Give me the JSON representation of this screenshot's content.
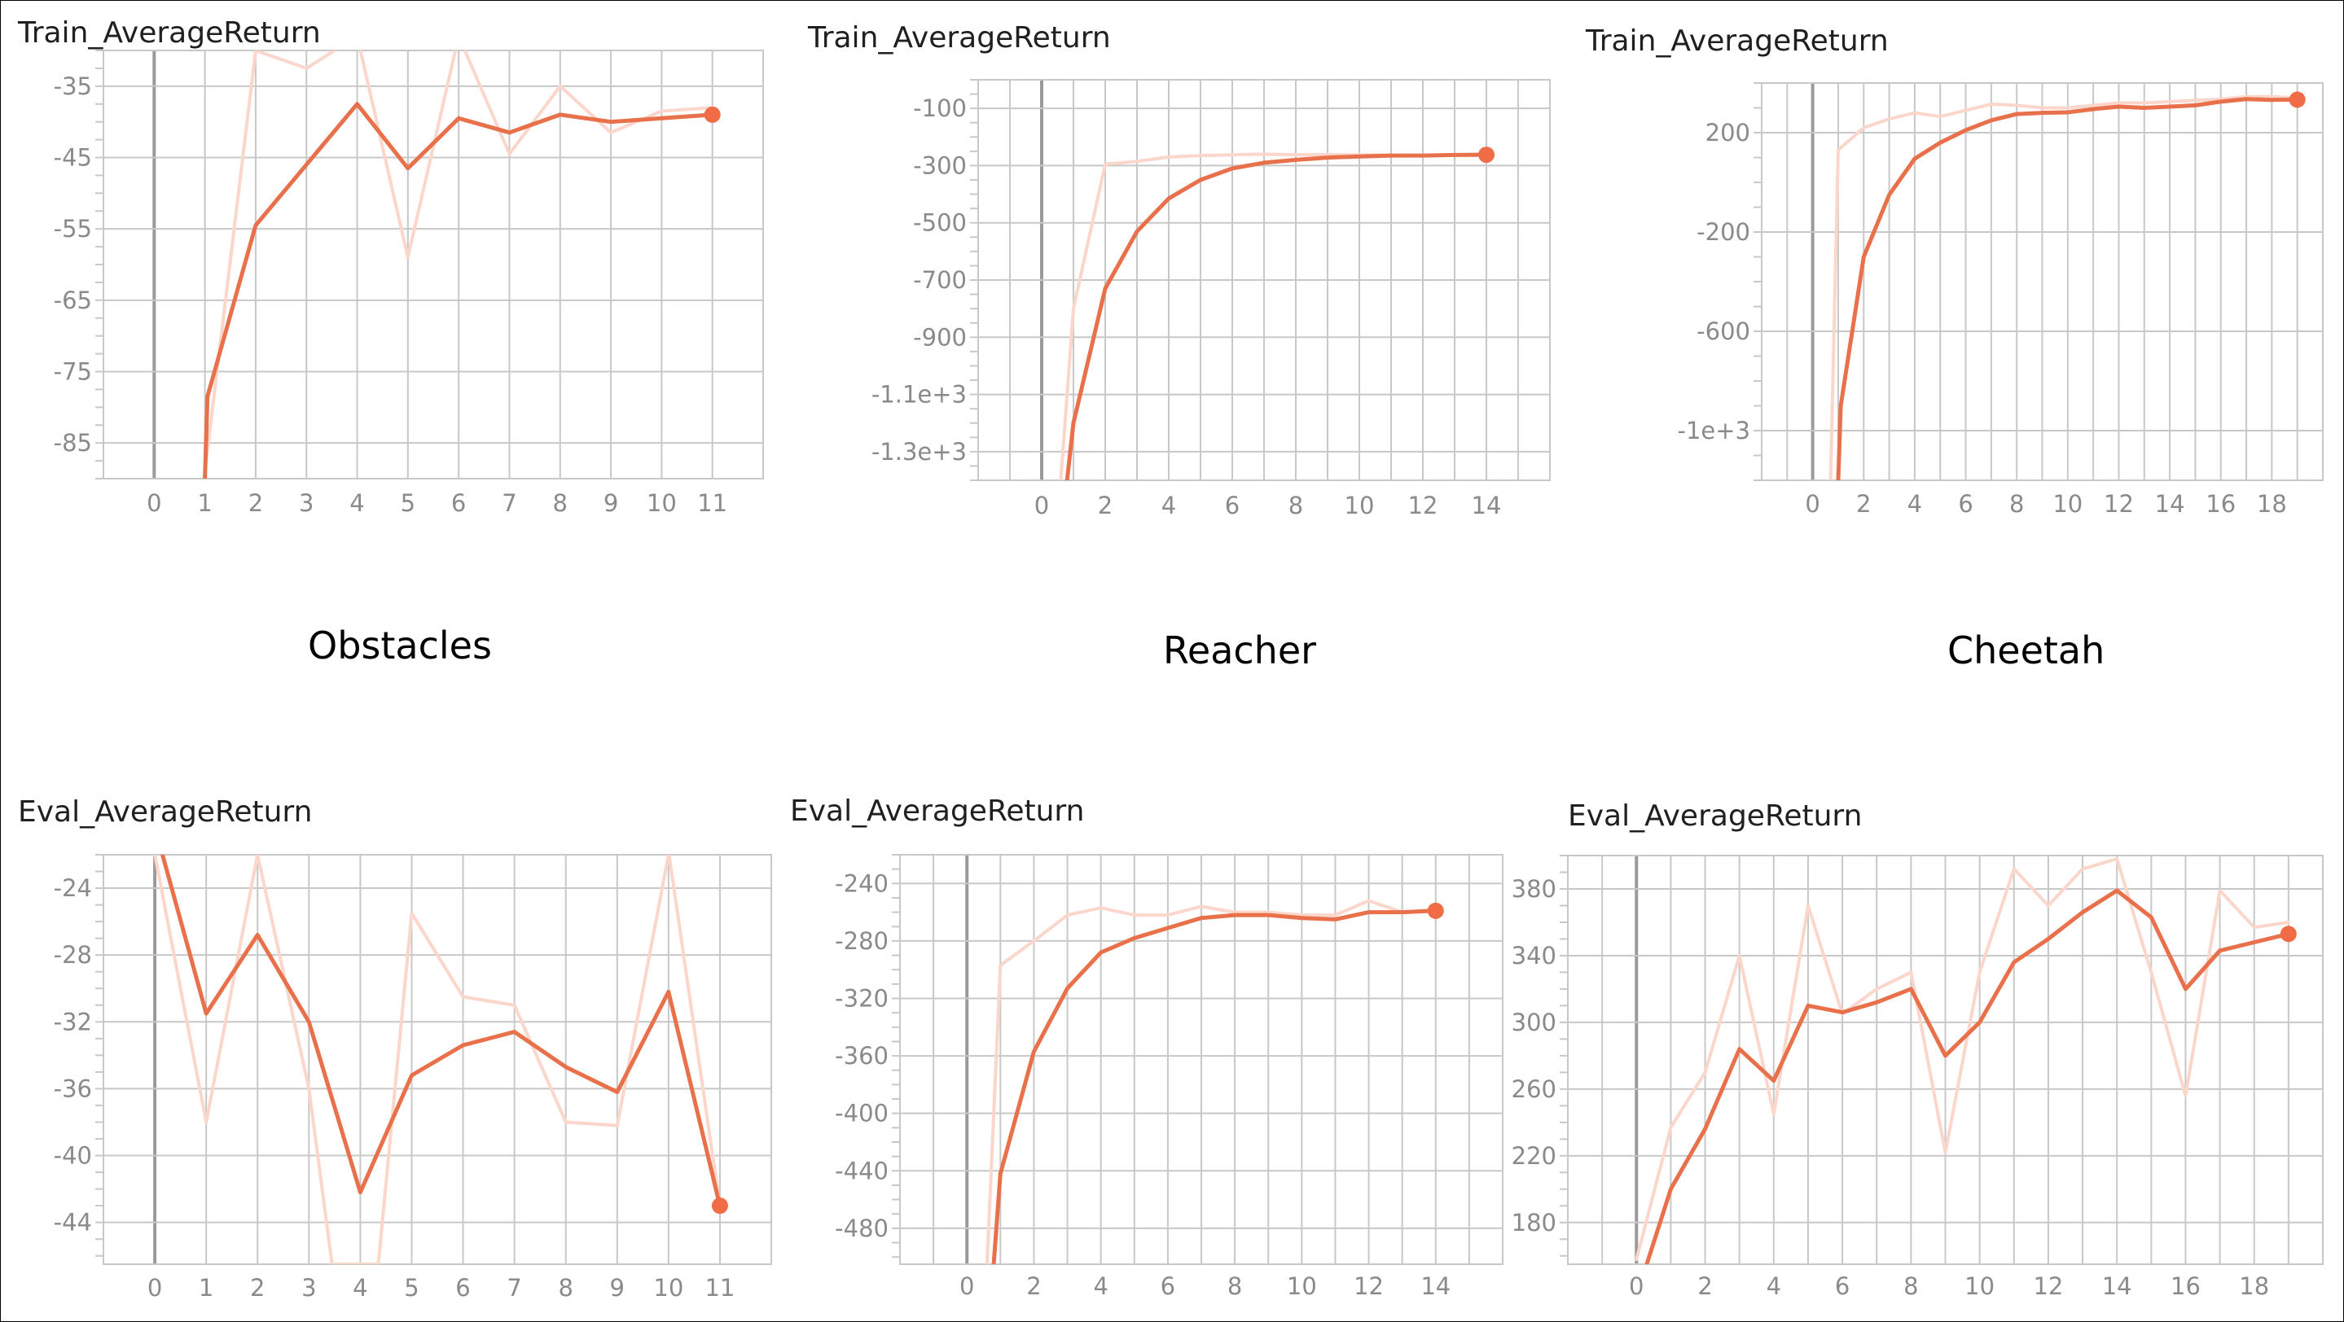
{
  "colors": {
    "line": "#e8704a",
    "raw_line": "#fbd6cb",
    "marker": "#ef6c47",
    "grid": "#c8c8c8",
    "zero_line": "#9a9a9a",
    "tick_text": "#8a8a8a"
  },
  "env_labels": [
    "Obstacles",
    "Reacher",
    "Cheetah"
  ],
  "chart_data": [
    {
      "type": "line",
      "title": "Train_AverageReturn",
      "env": "Obstacles",
      "xlim": [
        -1,
        12
      ],
      "ylim": [
        -90,
        -30
      ],
      "xticks": [
        0,
        1,
        2,
        3,
        4,
        5,
        6,
        7,
        8,
        9,
        10,
        11
      ],
      "yticks": [
        -85,
        -75,
        -65,
        -55,
        -45,
        -35
      ],
      "grid": true,
      "series": [
        {
          "role": "raw",
          "x": [
            1,
            2,
            3,
            4,
            5,
            6,
            7,
            8,
            9,
            10,
            11
          ],
          "y": [
            -89,
            -30,
            -32.5,
            -28,
            -59,
            -28,
            -44.5,
            -35,
            -41.5,
            -38.5,
            -38
          ]
        },
        {
          "role": "smoothed",
          "x": [
            1,
            1.05,
            2,
            3,
            4,
            5,
            6,
            7,
            8,
            9,
            10,
            11
          ],
          "y": [
            -90,
            -78.5,
            -54.5,
            -46,
            -37.5,
            -46.5,
            -39.5,
            -41.5,
            -39,
            -40,
            -39.5,
            -39
          ]
        }
      ]
    },
    {
      "type": "line",
      "title": "Train_AverageReturn",
      "env": "Reacher",
      "xlim": [
        -2,
        16
      ],
      "ylim": [
        -1400,
        0
      ],
      "xticks": [
        0,
        2,
        4,
        6,
        8,
        10,
        12,
        14
      ],
      "yticks": [
        -1300,
        -1100,
        -900,
        -700,
        -500,
        -300,
        -100
      ],
      "ytick_labels": [
        "-1.3e+3",
        "-1.1e+3",
        "-900",
        "-700",
        "-500",
        "-300",
        "-100"
      ],
      "grid": true,
      "series": [
        {
          "role": "raw",
          "x": [
            0.6,
            1,
            2,
            3,
            4,
            5,
            6,
            7,
            8,
            10,
            12,
            14
          ],
          "y": [
            -1400,
            -800,
            -295,
            -285,
            -270,
            -265,
            -262,
            -260,
            -262,
            -262,
            -265,
            -260
          ]
        },
        {
          "role": "smoothed",
          "x": [
            0.8,
            1,
            2,
            3,
            4,
            5,
            6,
            7,
            8,
            9,
            10,
            11,
            12,
            13,
            14
          ],
          "y": [
            -1400,
            -1200,
            -730,
            -530,
            -415,
            -350,
            -310,
            -290,
            -280,
            -272,
            -268,
            -265,
            -265,
            -263,
            -262
          ]
        }
      ]
    },
    {
      "type": "line",
      "title": "Train_AverageReturn",
      "env": "Cheetah",
      "xlim": [
        -2,
        20
      ],
      "ylim": [
        -1200,
        400
      ],
      "xticks": [
        0,
        2,
        4,
        6,
        8,
        10,
        12,
        14,
        16,
        18
      ],
      "yticks": [
        -1000,
        -600,
        -200,
        200
      ],
      "ytick_labels": [
        "-1e+3",
        "-600",
        "-200",
        "200"
      ],
      "grid": true,
      "series": [
        {
          "role": "raw",
          "x": [
            0.7,
            1,
            2,
            3,
            4,
            5,
            6,
            7,
            8,
            9,
            10,
            11,
            12,
            13,
            14,
            15,
            16,
            17,
            18,
            19
          ],
          "y": [
            -1200,
            130,
            220,
            255,
            280,
            265,
            290,
            315,
            310,
            300,
            300,
            310,
            320,
            320,
            325,
            330,
            335,
            345,
            345,
            340
          ]
        },
        {
          "role": "smoothed",
          "x": [
            1,
            1.1,
            2,
            3,
            4,
            5,
            6,
            7,
            8,
            9,
            10,
            11,
            12,
            13,
            14,
            15,
            16,
            17,
            18,
            19
          ],
          "y": [
            -1200,
            -900,
            -300,
            -50,
            95,
            160,
            210,
            250,
            275,
            280,
            282,
            295,
            305,
            300,
            305,
            310,
            325,
            335,
            332,
            333
          ]
        }
      ]
    },
    {
      "type": "line",
      "title": "Eval_AverageReturn",
      "env": "Obstacles",
      "xlim": [
        -1,
        12
      ],
      "ylim": [
        -46.5,
        -22
      ],
      "xticks": [
        0,
        1,
        2,
        3,
        4,
        5,
        6,
        7,
        8,
        9,
        10,
        11
      ],
      "yticks": [
        -44,
        -40,
        -36,
        -32,
        -28,
        -24
      ],
      "grid": true,
      "series": [
        {
          "role": "raw",
          "x": [
            0,
            1,
            2,
            3,
            3.45,
            4.35,
            5,
            6,
            7,
            8,
            9,
            10,
            10.01,
            11
          ],
          "y": [
            -22,
            -38,
            -22,
            -36,
            -46.5,
            -46.5,
            -25.5,
            -30.5,
            -31,
            -38,
            -38.2,
            -22,
            -22,
            -43
          ]
        },
        {
          "role": "smoothed",
          "x": [
            0.15,
            1,
            2,
            3,
            4,
            5,
            6,
            7,
            8,
            9,
            10,
            11
          ],
          "y": [
            -22,
            -31.5,
            -26.8,
            -32,
            -42.2,
            -35.2,
            -33.4,
            -32.6,
            -34.7,
            -36.2,
            -30.2,
            -43
          ]
        }
      ]
    },
    {
      "type": "line",
      "title": "Eval_AverageReturn",
      "env": "Reacher",
      "xlim": [
        -2,
        16
      ],
      "ylim": [
        -505,
        -220
      ],
      "xticks": [
        0,
        2,
        4,
        6,
        8,
        10,
        12,
        14
      ],
      "yticks": [
        -480,
        -440,
        -400,
        -360,
        -320,
        -280,
        -240
      ],
      "grid": true,
      "series": [
        {
          "role": "raw",
          "x": [
            0.6,
            1,
            2,
            3,
            4,
            5,
            6,
            7,
            8,
            9,
            10,
            11,
            12,
            13,
            14
          ],
          "y": [
            -505,
            -297,
            -280,
            -262,
            -257,
            -262,
            -262,
            -256,
            -260,
            -260,
            -262,
            -262,
            -252,
            -260,
            -258
          ]
        },
        {
          "role": "smoothed",
          "x": [
            0.8,
            1,
            2,
            3,
            4,
            5,
            6,
            7,
            8,
            9,
            10,
            11,
            12,
            13,
            14
          ],
          "y": [
            -505,
            -442,
            -357,
            -313,
            -288,
            -278,
            -271,
            -264,
            -262,
            -262,
            -264,
            -265,
            -260,
            -260,
            -259
          ]
        }
      ]
    },
    {
      "type": "line",
      "title": "Eval_AverageReturn",
      "env": "Cheetah",
      "xlim": [
        -2,
        20
      ],
      "ylim": [
        155,
        400
      ],
      "xticks": [
        0,
        2,
        4,
        6,
        8,
        10,
        12,
        14,
        16,
        18
      ],
      "yticks": [
        180,
        220,
        260,
        300,
        340,
        380
      ],
      "grid": true,
      "series": [
        {
          "role": "raw",
          "x": [
            0,
            1,
            2,
            3,
            4,
            5,
            6,
            7,
            8,
            9,
            10,
            11,
            12,
            13,
            14,
            15,
            16,
            17,
            18,
            19
          ],
          "y": [
            158,
            237,
            270,
            340,
            245,
            370,
            305,
            320,
            330,
            222,
            330,
            392,
            370,
            392,
            398,
            330,
            256,
            379,
            357,
            360
          ]
        },
        {
          "role": "smoothed",
          "x": [
            0.3,
            1,
            2,
            3,
            4,
            5,
            6,
            7,
            8,
            9,
            10,
            11,
            12,
            13,
            14,
            15,
            16,
            17,
            18,
            19
          ],
          "y": [
            155,
            200,
            236,
            284,
            265,
            310,
            306,
            312,
            320,
            280,
            300,
            336,
            350,
            366,
            379,
            363,
            320,
            343,
            348,
            353
          ]
        }
      ]
    }
  ]
}
